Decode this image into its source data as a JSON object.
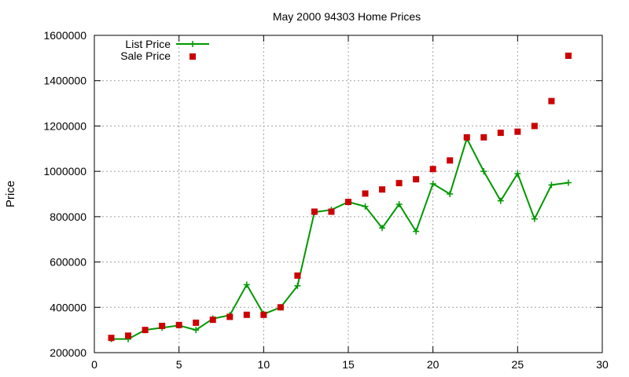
{
  "chart_data": {
    "type": "line",
    "title": "May 2000 94303 Home Prices",
    "xlabel": "",
    "ylabel": "Price",
    "xlim": [
      0,
      30
    ],
    "ylim": [
      200000,
      1600000
    ],
    "xticks": [
      0,
      5,
      10,
      15,
      20,
      25,
      30
    ],
    "yticks": [
      200000,
      400000,
      600000,
      800000,
      1000000,
      1200000,
      1400000,
      1600000
    ],
    "grid": true,
    "legend_position": "top-left",
    "series": [
      {
        "name": "List Price",
        "style": "line-plus",
        "color": "#009900",
        "x": [
          1,
          2,
          3,
          4,
          5,
          6,
          7,
          8,
          9,
          10,
          11,
          12,
          13,
          14,
          15,
          16,
          17,
          18,
          19,
          20,
          21,
          22,
          23,
          24,
          25,
          26,
          27,
          28
        ],
        "y": [
          260000,
          260000,
          300000,
          310000,
          320000,
          300000,
          350000,
          365000,
          500000,
          370000,
          400000,
          495000,
          820000,
          830000,
          865000,
          845000,
          750000,
          855000,
          735000,
          945000,
          900000,
          1145000,
          1000000,
          870000,
          990000,
          790000,
          940000,
          950000
        ]
      },
      {
        "name": "Sale Price",
        "style": "points-square",
        "color": "#cc0000",
        "x": [
          1,
          2,
          3,
          4,
          5,
          6,
          7,
          8,
          9,
          10,
          11,
          12,
          13,
          14,
          15,
          16,
          17,
          18,
          19,
          20,
          21,
          22,
          23,
          24,
          25,
          26,
          27,
          28
        ],
        "y": [
          265000,
          275000,
          300000,
          318000,
          322000,
          332000,
          345000,
          358000,
          367000,
          367000,
          400000,
          540000,
          822000,
          822000,
          865000,
          902000,
          920000,
          948000,
          965000,
          1010000,
          1048000,
          1150000,
          1150000,
          1170000,
          1175000,
          1200000,
          1310000,
          1510000
        ]
      }
    ]
  }
}
